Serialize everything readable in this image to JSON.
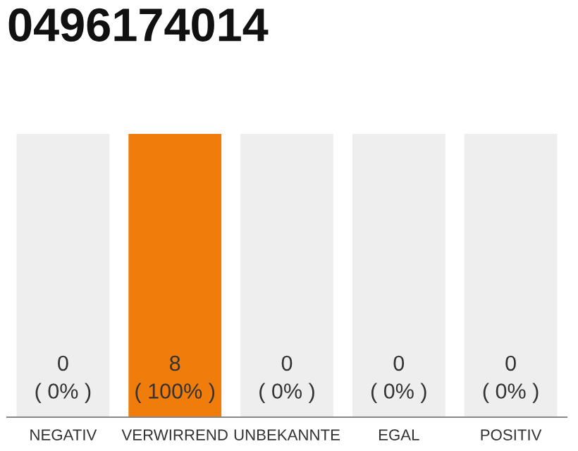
{
  "chart_data": {
    "type": "bar",
    "title": "0496174014",
    "categories": [
      "NEGATIV",
      "VERWIRREND",
      "UNBEKANNTE",
      "EGAL",
      "POSITIV"
    ],
    "series": [
      {
        "color": "#f07c0c",
        "values": [
          0,
          8,
          0,
          0,
          0
        ],
        "value_labels": [
          "0\n( 0% )",
          "8\n( 100% )",
          "0\n( 0% )",
          "0\n( 0% )",
          "0\n( 0% )"
        ]
      },
      {
        "color": "#eeeeee",
        "values": [
          8,
          0,
          8,
          8,
          8
        ]
      }
    ],
    "ylim": [
      0,
      8
    ]
  }
}
